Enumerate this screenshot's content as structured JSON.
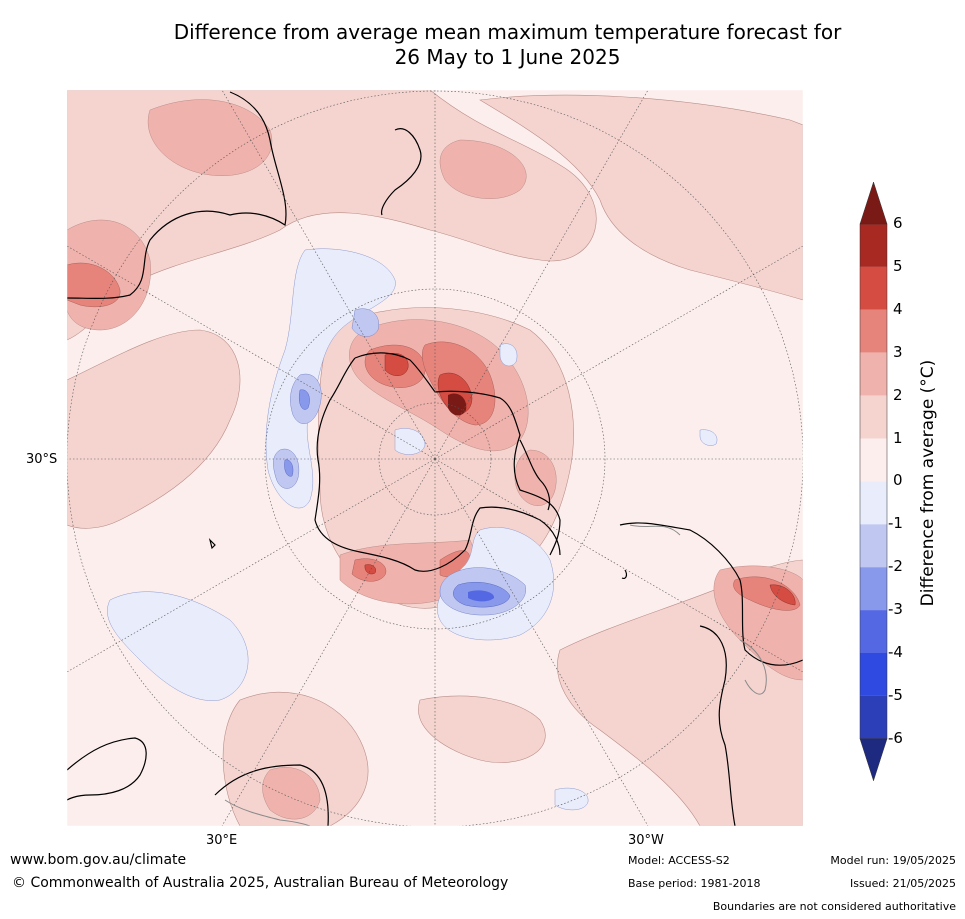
{
  "title": {
    "line1": "Difference from average mean maximum temperature forecast for",
    "line2": "26 May to 1 June 2025"
  },
  "map_labels": {
    "lat_30s": "30°S",
    "lon_30e": "30°E",
    "lon_30w": "30°W"
  },
  "colorbar": {
    "title": "Difference from average (°C)",
    "ticks": [
      "6",
      "5",
      "4",
      "3",
      "2",
      "1",
      "0",
      "-1",
      "-2",
      "-3",
      "-4",
      "-5",
      "-6"
    ],
    "colors_top_to_bottom": [
      "#7a1a16",
      "#a82822",
      "#d44c42",
      "#e6847c",
      "#f0b2ac",
      "#f5d4d0",
      "#fceeec",
      "#e8ecfb",
      "#c0c8f2",
      "#8898ea",
      "#5468e4",
      "#2e4ae0",
      "#2c3fb8",
      "#1e2a80"
    ],
    "max_value": 6,
    "min_value": -6
  },
  "footer": {
    "website": "www.bom.gov.au/climate",
    "copyright": "© Commonwealth of Australia 2025, Australian Bureau of Meteorology",
    "model": "Model: ACCESS-S2",
    "base_period": "Base period: 1981-2018",
    "model_run": "Model run: 19/05/2025",
    "issued": "Issued: 21/05/2025",
    "disclaimer": "Boundaries are not considered authoritative"
  }
}
